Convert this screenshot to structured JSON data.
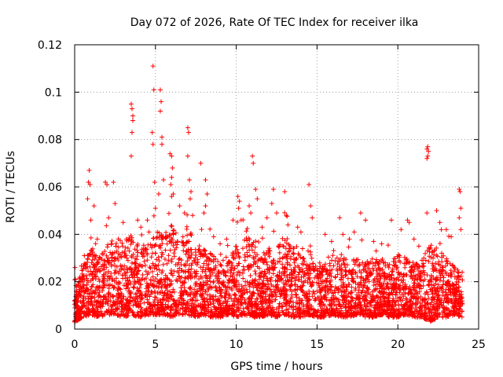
{
  "chart_data": {
    "type": "scatter",
    "title": "Day 072 of 2026, Rate Of TEC Index for receiver ilka",
    "xlabel": "GPS time / hours",
    "ylabel": "ROTI / TECUs",
    "xlim": [
      0,
      25
    ],
    "ylim": [
      0,
      0.12
    ],
    "xticks": [
      0,
      5,
      10,
      15,
      20,
      25
    ],
    "xtick_labels": [
      "0",
      "5",
      "10",
      "15",
      "20",
      "25"
    ],
    "yticks": [
      0,
      0.02,
      0.04,
      0.06,
      0.08,
      0.1,
      0.12
    ],
    "ytick_labels": [
      "0",
      "0.02",
      "0.04",
      "0.06",
      "0.08",
      "0.1",
      "0.12"
    ],
    "grid": true,
    "marker": "plus",
    "series": [
      {
        "name": "ROTI",
        "color": "#ff0000",
        "points": [
          [
            0.05,
            0.021
          ],
          [
            0.1,
            0.016
          ],
          [
            0.2,
            0.012
          ],
          [
            0.3,
            0.009
          ],
          [
            0.6,
            0.031
          ],
          [
            0.8,
            0.055
          ],
          [
            0.85,
            0.062
          ],
          [
            0.9,
            0.067
          ],
          [
            0.95,
            0.061
          ],
          [
            1.0,
            0.046
          ],
          [
            1.2,
            0.052
          ],
          [
            1.4,
            0.038
          ],
          [
            1.9,
            0.062
          ],
          [
            2.0,
            0.061
          ],
          [
            2.1,
            0.047
          ],
          [
            2.4,
            0.062
          ],
          [
            2.5,
            0.053
          ],
          [
            3.0,
            0.045
          ],
          [
            3.2,
            0.038
          ],
          [
            3.5,
            0.095
          ],
          [
            3.55,
            0.093
          ],
          [
            3.6,
            0.09
          ],
          [
            3.6,
            0.088
          ],
          [
            3.55,
            0.083
          ],
          [
            3.5,
            0.073
          ],
          [
            3.9,
            0.046
          ],
          [
            4.1,
            0.043
          ],
          [
            4.5,
            0.046
          ],
          [
            4.6,
            0.041
          ],
          [
            4.8,
            0.083
          ],
          [
            4.85,
            0.078
          ],
          [
            4.9,
            0.101
          ],
          [
            4.85,
            0.111
          ],
          [
            4.95,
            0.062
          ],
          [
            5.0,
            0.051
          ],
          [
            5.3,
            0.101
          ],
          [
            5.35,
            0.096
          ],
          [
            5.3,
            0.092
          ],
          [
            5.4,
            0.081
          ],
          [
            5.4,
            0.078
          ],
          [
            5.5,
            0.063
          ],
          [
            5.2,
            0.057
          ],
          [
            5.9,
            0.074
          ],
          [
            6.0,
            0.073
          ],
          [
            6.05,
            0.068
          ],
          [
            6.0,
            0.064
          ],
          [
            5.95,
            0.061
          ],
          [
            6.1,
            0.057
          ],
          [
            6.0,
            0.056
          ],
          [
            6.5,
            0.052
          ],
          [
            6.8,
            0.049
          ],
          [
            7.0,
            0.085
          ],
          [
            7.05,
            0.083
          ],
          [
            7.0,
            0.073
          ],
          [
            7.1,
            0.063
          ],
          [
            7.2,
            0.058
          ],
          [
            7.15,
            0.055
          ],
          [
            7.3,
            0.048
          ],
          [
            7.8,
            0.07
          ],
          [
            8.1,
            0.063
          ],
          [
            8.2,
            0.057
          ],
          [
            8.1,
            0.052
          ],
          [
            8.0,
            0.049
          ],
          [
            8.6,
            0.039
          ],
          [
            9.0,
            0.036
          ],
          [
            9.4,
            0.038
          ],
          [
            9.8,
            0.046
          ],
          [
            10.1,
            0.056
          ],
          [
            10.2,
            0.054
          ],
          [
            10.15,
            0.051
          ],
          [
            10.3,
            0.046
          ],
          [
            10.8,
            0.052
          ],
          [
            10.9,
            0.049
          ],
          [
            11.0,
            0.073
          ],
          [
            11.05,
            0.07
          ],
          [
            11.2,
            0.059
          ],
          [
            11.3,
            0.055
          ],
          [
            11.6,
            0.043
          ],
          [
            11.9,
            0.047
          ],
          [
            12.3,
            0.059
          ],
          [
            12.2,
            0.053
          ],
          [
            12.5,
            0.049
          ],
          [
            13.0,
            0.058
          ],
          [
            13.1,
            0.048
          ],
          [
            13.2,
            0.044
          ],
          [
            13.8,
            0.043
          ],
          [
            14.0,
            0.041
          ],
          [
            14.5,
            0.061
          ],
          [
            14.6,
            0.052
          ],
          [
            14.7,
            0.047
          ],
          [
            15.5,
            0.04
          ],
          [
            15.9,
            0.037
          ],
          [
            16.4,
            0.047
          ],
          [
            16.6,
            0.04
          ],
          [
            17.0,
            0.038
          ],
          [
            17.3,
            0.041
          ],
          [
            17.7,
            0.049
          ],
          [
            18.0,
            0.046
          ],
          [
            18.5,
            0.037
          ],
          [
            19.0,
            0.036
          ],
          [
            19.6,
            0.046
          ],
          [
            20.2,
            0.042
          ],
          [
            20.6,
            0.046
          ],
          [
            20.7,
            0.045
          ],
          [
            21.0,
            0.038
          ],
          [
            21.3,
            0.035
          ],
          [
            21.8,
            0.076
          ],
          [
            21.85,
            0.077
          ],
          [
            21.9,
            0.075
          ],
          [
            21.85,
            0.073
          ],
          [
            21.8,
            0.072
          ],
          [
            21.8,
            0.049
          ],
          [
            22.4,
            0.05
          ],
          [
            22.6,
            0.045
          ],
          [
            23.0,
            0.042
          ],
          [
            23.3,
            0.039
          ],
          [
            23.8,
            0.059
          ],
          [
            23.85,
            0.058
          ],
          [
            23.9,
            0.051
          ],
          [
            23.8,
            0.047
          ],
          [
            23.9,
            0.042
          ]
        ],
        "envelope": {
          "x": [
            0,
            0.5,
            1,
            1.5,
            2,
            2.5,
            3,
            3.5,
            4,
            4.5,
            5,
            5.5,
            6,
            6.5,
            7,
            7.5,
            8,
            8.5,
            9,
            9.5,
            10,
            10.5,
            11,
            11.5,
            12,
            12.5,
            13,
            13.5,
            14,
            14.5,
            15,
            15.5,
            16,
            16.5,
            17,
            17.5,
            18,
            18.5,
            19,
            19.5,
            20,
            20.5,
            21,
            21.5,
            22,
            22.5,
            23,
            23.5,
            24
          ],
          "upper": [
            0.016,
            0.026,
            0.035,
            0.03,
            0.036,
            0.04,
            0.036,
            0.04,
            0.034,
            0.036,
            0.042,
            0.04,
            0.044,
            0.038,
            0.045,
            0.036,
            0.034,
            0.032,
            0.03,
            0.028,
            0.036,
            0.04,
            0.038,
            0.03,
            0.036,
            0.034,
            0.04,
            0.036,
            0.034,
            0.036,
            0.03,
            0.026,
            0.03,
            0.032,
            0.028,
            0.03,
            0.03,
            0.03,
            0.03,
            0.028,
            0.032,
            0.03,
            0.028,
            0.03,
            0.036,
            0.034,
            0.03,
            0.026,
            0.024
          ],
          "lower": [
            0.003,
            0.005,
            0.006,
            0.005,
            0.006,
            0.006,
            0.005,
            0.006,
            0.005,
            0.006,
            0.006,
            0.006,
            0.005,
            0.006,
            0.006,
            0.005,
            0.006,
            0.005,
            0.005,
            0.006,
            0.005,
            0.006,
            0.005,
            0.005,
            0.006,
            0.005,
            0.006,
            0.005,
            0.005,
            0.006,
            0.005,
            0.005,
            0.006,
            0.005,
            0.005,
            0.006,
            0.005,
            0.005,
            0.006,
            0.005,
            0.005,
            0.006,
            0.005,
            0.005,
            0.003,
            0.005,
            0.005,
            0.006,
            0.005
          ]
        }
      }
    ]
  }
}
